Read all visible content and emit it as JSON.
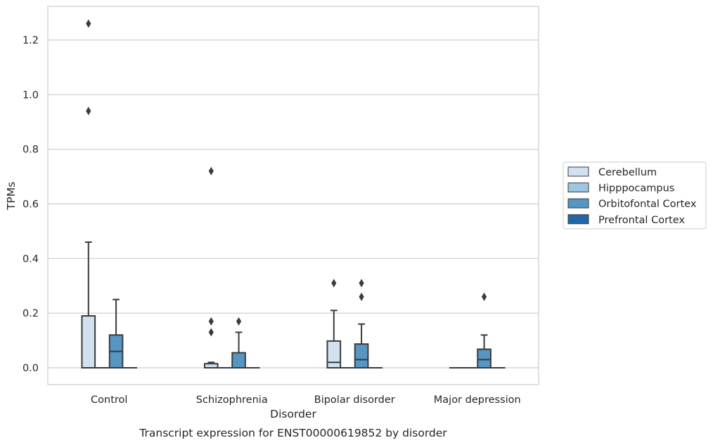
{
  "chart_data": {
    "type": "boxplot",
    "caption": "Transcript expression for ENST00000619852 by disorder",
    "xlabel": "Disorder",
    "ylabel": "TPMs",
    "ylim": [
      -0.062,
      1.32
    ],
    "yticks": [
      "0.0",
      "0.2",
      "0.4",
      "0.6",
      "0.8",
      "1.0",
      "1.2"
    ],
    "ytick_values": [
      0.0,
      0.2,
      0.4,
      0.6,
      0.8,
      1.0,
      1.2
    ],
    "grid": "horizontal",
    "legend_position": "right-outside",
    "categories": [
      "Control",
      "Schizophrenia",
      "Bipolar disorder",
      "Major depression"
    ],
    "series": [
      {
        "name": "Cerebellum",
        "color": "#d1e1ef",
        "boxes": [
          {
            "q1": 0.0,
            "median": 0.0,
            "q3": 0.19,
            "whisker_low": 0.0,
            "whisker_high": 0.46,
            "outliers": [
              0.94,
              1.26
            ]
          },
          {
            "q1": 0.0,
            "median": 0.0,
            "q3": 0.015,
            "whisker_low": 0.0,
            "whisker_high": 0.02,
            "outliers": [
              0.13,
              0.17,
              0.72
            ]
          },
          {
            "q1": 0.0,
            "median": 0.02,
            "q3": 0.098,
            "whisker_low": 0.0,
            "whisker_high": 0.21,
            "outliers": [
              0.31
            ]
          },
          {
            "q1": 0.0,
            "median": 0.0,
            "q3": 0.0,
            "whisker_low": 0.0,
            "whisker_high": 0.0,
            "outliers": []
          }
        ]
      },
      {
        "name": "Hipppocampus",
        "color": "#9fc6e0",
        "boxes": [
          {
            "q1": 0.0,
            "median": 0.0,
            "q3": 0.0,
            "whisker_low": 0.0,
            "whisker_high": 0.0,
            "outliers": []
          },
          {
            "q1": 0.0,
            "median": 0.0,
            "q3": 0.0,
            "whisker_low": 0.0,
            "whisker_high": 0.0,
            "outliers": []
          },
          {
            "q1": 0.0,
            "median": 0.0,
            "q3": 0.0,
            "whisker_low": 0.0,
            "whisker_high": 0.0,
            "outliers": []
          },
          {
            "q1": 0.0,
            "median": 0.0,
            "q3": 0.0,
            "whisker_low": 0.0,
            "whisker_high": 0.0,
            "outliers": []
          }
        ]
      },
      {
        "name": "Orbitofontal Cortex",
        "color": "#5596c3",
        "boxes": [
          {
            "q1": 0.0,
            "median": 0.06,
            "q3": 0.12,
            "whisker_low": 0.0,
            "whisker_high": 0.25,
            "outliers": []
          },
          {
            "q1": 0.0,
            "median": 0.0,
            "q3": 0.055,
            "whisker_low": 0.0,
            "whisker_high": 0.13,
            "outliers": [
              0.17
            ]
          },
          {
            "q1": 0.0,
            "median": 0.03,
            "q3": 0.087,
            "whisker_low": 0.0,
            "whisker_high": 0.16,
            "outliers": [
              0.26,
              0.31
            ]
          },
          {
            "q1": 0.0,
            "median": 0.03,
            "q3": 0.068,
            "whisker_low": 0.0,
            "whisker_high": 0.12,
            "outliers": [
              0.26
            ]
          }
        ]
      },
      {
        "name": "Prefrontal Cortex",
        "color": "#2268a8",
        "boxes": [
          {
            "q1": 0.0,
            "median": 0.0,
            "q3": 0.0,
            "whisker_low": 0.0,
            "whisker_high": 0.0,
            "outliers": []
          },
          {
            "q1": 0.0,
            "median": 0.0,
            "q3": 0.0,
            "whisker_low": 0.0,
            "whisker_high": 0.0,
            "outliers": []
          },
          {
            "q1": 0.0,
            "median": 0.0,
            "q3": 0.0,
            "whisker_low": 0.0,
            "whisker_high": 0.0,
            "outliers": []
          },
          {
            "q1": 0.0,
            "median": 0.0,
            "q3": 0.0,
            "whisker_low": 0.0,
            "whisker_high": 0.0,
            "outliers": []
          }
        ]
      }
    ],
    "colors": {
      "grid": "#cccccc",
      "frame": "#cccccc",
      "box_edge": "#3b3b3b",
      "text": "#262626"
    }
  }
}
